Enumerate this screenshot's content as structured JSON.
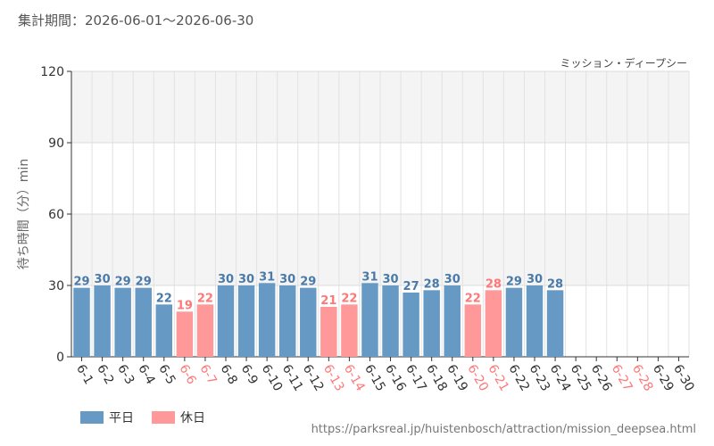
{
  "period_label": "集計期間：2026-06-01～2026-06-30",
  "source_url": "https://parksreal.jp/huistenbosch/attraction/mission_deepsea.html",
  "legend": {
    "weekday_label": "平日",
    "holiday_label": "休日"
  },
  "colors": {
    "weekday": "#6699c3",
    "holiday": "#ff9999",
    "weekday_text": "#4a7aa8",
    "holiday_text": "#ff7777",
    "band": "#f4f4f4"
  },
  "chart_data": {
    "type": "bar",
    "title": "ミッション・ディープシー",
    "xlabel": "",
    "ylabel": "待ち時間（分）min",
    "ylim": [
      0,
      120
    ],
    "yticks": [
      0,
      30,
      60,
      90,
      120
    ],
    "grid": true,
    "categories": [
      "6-1",
      "6-2",
      "6-3",
      "6-4",
      "6-5",
      "6-6",
      "6-7",
      "6-8",
      "6-9",
      "6-10",
      "6-11",
      "6-12",
      "6-13",
      "6-14",
      "6-15",
      "6-16",
      "6-17",
      "6-18",
      "6-19",
      "6-20",
      "6-21",
      "6-22",
      "6-23",
      "6-24",
      "6-25",
      "6-26",
      "6-27",
      "6-28",
      "6-29",
      "6-30"
    ],
    "values": [
      29,
      30,
      29,
      29,
      22,
      19,
      22,
      30,
      30,
      31,
      30,
      29,
      21,
      22,
      31,
      30,
      27,
      28,
      30,
      22,
      28,
      29,
      30,
      28,
      null,
      null,
      null,
      null,
      null,
      null
    ],
    "day_type": [
      "weekday",
      "weekday",
      "weekday",
      "weekday",
      "weekday",
      "holiday",
      "holiday",
      "weekday",
      "weekday",
      "weekday",
      "weekday",
      "weekday",
      "holiday",
      "holiday",
      "weekday",
      "weekday",
      "weekday",
      "weekday",
      "weekday",
      "holiday",
      "holiday",
      "weekday",
      "weekday",
      "weekday",
      "weekday",
      "weekday",
      "holiday",
      "holiday",
      "weekday",
      "weekday"
    ]
  }
}
